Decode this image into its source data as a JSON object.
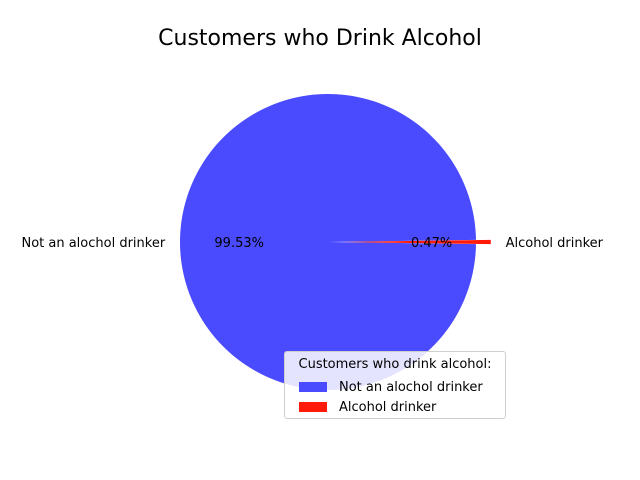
{
  "chart_data": {
    "type": "pie",
    "title": "Customers who Drink Alcohol",
    "categories": [
      "Not an alochol drinker",
      "Alcohol drinker"
    ],
    "values": [
      99.53,
      0.47
    ],
    "percent_labels": [
      "99.53%",
      "0.47%"
    ],
    "colors": [
      "#4a4aff",
      "#ff1a0a"
    ],
    "exploded": [
      false,
      true
    ],
    "legend": {
      "title": "Customers who drink alcohol:",
      "placement": "lower-right",
      "entries": [
        "Not an alochol drinker",
        "Alcohol drinker"
      ]
    }
  }
}
